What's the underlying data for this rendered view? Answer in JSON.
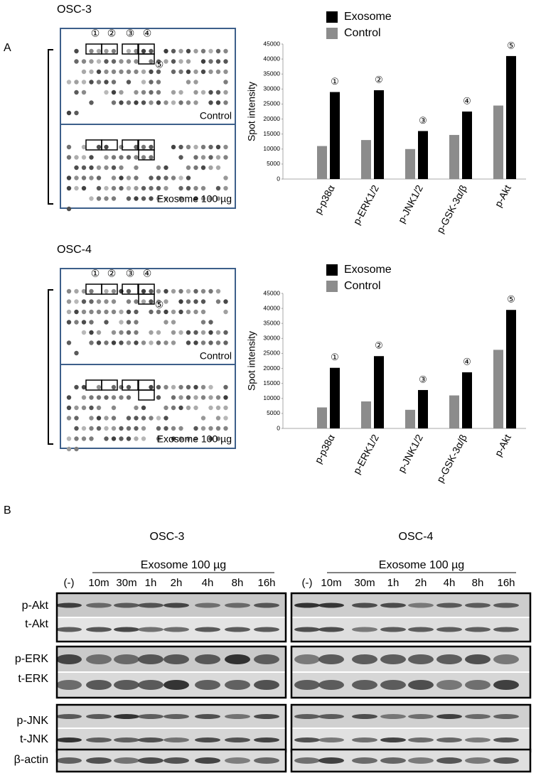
{
  "panel_a": {
    "label": "A",
    "blots": [
      {
        "title": "OSC-3",
        "markers": [
          "①",
          "②",
          "③",
          "④",
          "⑤"
        ],
        "conditions": [
          "Control",
          "Exosome 100 µg"
        ]
      },
      {
        "title": "OSC-4",
        "markers": [
          "①",
          "②",
          "③",
          "④",
          "⑤"
        ],
        "conditions": [
          "Control",
          "Exosome 100 µg"
        ]
      }
    ]
  },
  "chart_data": [
    {
      "type": "bar",
      "ylabel": "Spot intensity",
      "categories": [
        "p-p38α",
        "p-ERK1/2",
        "p-JNK1/2",
        "p-GSK-3α/β",
        "p-Akt"
      ],
      "annotations": [
        "①",
        "②",
        "③",
        "④",
        "⑤"
      ],
      "series": [
        {
          "name": "Exosome",
          "color": "#000000",
          "values": [
            29000,
            29600,
            16000,
            22500,
            41000
          ]
        },
        {
          "name": "Control",
          "color": "#8c8c8c",
          "values": [
            11000,
            13000,
            10000,
            14700,
            24500
          ]
        }
      ],
      "ylim": [
        0,
        45000
      ],
      "yticks": [
        0,
        5000,
        10000,
        15000,
        20000,
        25000,
        30000,
        35000,
        40000,
        45000
      ]
    },
    {
      "type": "bar",
      "ylabel": "Spot intensity",
      "categories": [
        "p-p38α",
        "p-ERK1/2",
        "p-JNK1/2",
        "p-GSK-3α/β",
        "p-Akt"
      ],
      "annotations": [
        "①",
        "②",
        "③",
        "④",
        "⑤"
      ],
      "series": [
        {
          "name": "Exosome",
          "color": "#000000",
          "values": [
            20200,
            24100,
            12800,
            18700,
            39500
          ]
        },
        {
          "name": "Control",
          "color": "#8c8c8c",
          "values": [
            7000,
            9000,
            6200,
            11000,
            26200
          ]
        }
      ],
      "ylim": [
        0,
        45000
      ],
      "yticks": [
        0,
        5000,
        10000,
        15000,
        20000,
        25000,
        30000,
        35000,
        40000,
        45000
      ]
    }
  ],
  "panel_b": {
    "label": "B",
    "groups": [
      {
        "title": "OSC-3",
        "treatment": "Exosome 100 µg",
        "lanes": [
          "(-)",
          "10m",
          "30m",
          "1h",
          "2h",
          "4h",
          "8h",
          "16h"
        ]
      },
      {
        "title": "OSC-4",
        "treatment": "Exosome 100 µg",
        "lanes": [
          "(-)",
          "10m",
          "30m",
          "1h",
          "2h",
          "4h",
          "8h",
          "16h"
        ]
      }
    ],
    "rows": [
      "p-Akt",
      "t-Akt",
      "p-ERK",
      "t-ERK",
      "p-JNK",
      "t-JNK",
      "β-actin"
    ]
  }
}
